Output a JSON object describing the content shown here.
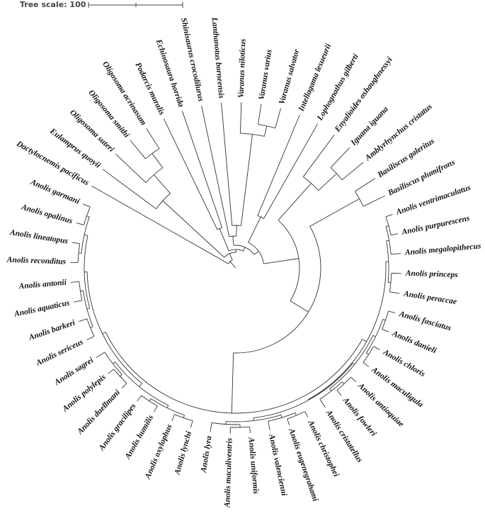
{
  "scale_bar": {
    "label": "Tree scale: 100"
  },
  "tree": {
    "leaves": [
      "Dactylocnemis pacificus",
      "Eulamprus quoyii",
      "Oligosoma suteri",
      "Oligosoma smithi",
      "Oligosoma acrinasum",
      "Podarcis muralis",
      "Echinosaura horrida",
      "Shinisaurus crocodilurus",
      "Lanthanotus borneensis",
      "Varanus niloticus",
      "Varanus varius",
      "Varanus salvator",
      "Intellagama lesueurii",
      "Lophognathus gilberti",
      "Enyalioides oshaughnessyi",
      "Iguana iguana",
      "Amblyrhynchus cristatus",
      "Basiliscus galeritus",
      "Basiliscus plumifrons",
      "Anolis ventrimaculatus",
      "Anolis purpurescens",
      "Anolis megalopithecus",
      "Anolis princeps",
      "Anolis peraccae",
      "Anolis fasciatus",
      "Anolis danieli",
      "Anolis chloris",
      "Anolis maculigula",
      "Anolis antioquiae",
      "Anolis fowleri",
      "Anolis cristatellus",
      "Anolis christophei",
      "Anolis eugenegrahami",
      "Anolis valencienni",
      "Anolis uniformis",
      "Anolis maculiventris",
      "Anolis lyra",
      "Anolis lynchi",
      "Anolis oxylophus",
      "Anolis humilis",
      "Anolis gracilipes",
      "Anolis duellmani",
      "Anolis polylepis",
      "Anolis sagrei",
      "Anolis sericeus",
      "Anolis barkeri",
      "Anolis aquaticus",
      "Anolis antonii",
      "Anolis reconditus",
      "Anolis lineatopus",
      "Anolis opalinus",
      "Anolis garmani"
    ]
  }
}
